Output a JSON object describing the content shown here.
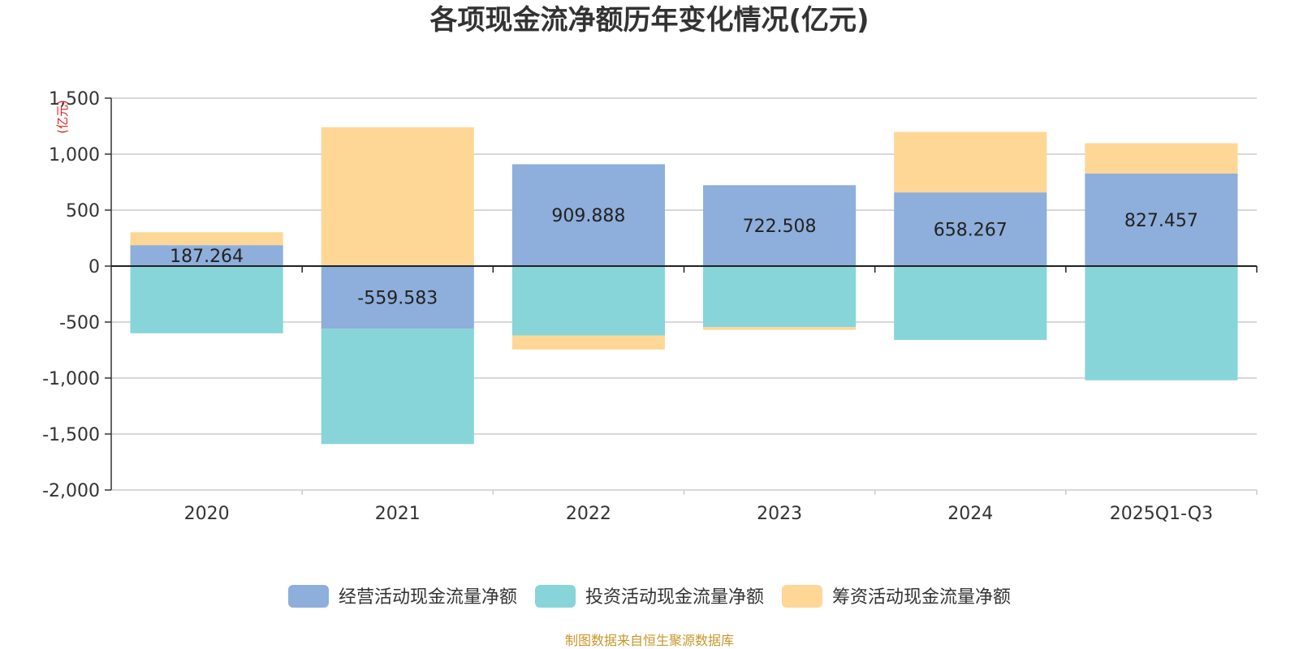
{
  "chart_data": {
    "type": "bar",
    "stacked": true,
    "title": "各项现金流净额历年变化情况(亿元)",
    "unit_label": "(亿元)",
    "categories": [
      "2020",
      "2021",
      "2022",
      "2023",
      "2024",
      "2025Q1-Q3"
    ],
    "ylim": [
      -2000,
      1500
    ],
    "y_ticks": [
      1500,
      1000,
      500,
      0,
      -500,
      -1000,
      -1500,
      -2000
    ],
    "y_tick_labels": [
      "1,500",
      "1,000",
      "500",
      "0",
      "-500",
      "-1,000",
      "-1,500",
      "-2,000"
    ],
    "grid": true,
    "legend_position": "bottom",
    "series": [
      {
        "name": "经营活动现金流量净额",
        "color": "#8eaedb",
        "values": [
          187.264,
          -559.583,
          909.888,
          722.508,
          658.267,
          827.457
        ],
        "labels": [
          "187.264",
          "-559.583",
          "909.888",
          "722.508",
          "658.267",
          "827.457"
        ]
      },
      {
        "name": "投资活动现金流量净额",
        "color": "#87d5d8",
        "values": [
          -600,
          -1030,
          -620,
          -545,
          -660,
          -1020
        ]
      },
      {
        "name": "筹资活动现金流量净额",
        "color": "#fed797",
        "values": [
          115,
          1240,
          -125,
          -25,
          540,
          270
        ]
      }
    ],
    "source": "制图数据来自恒生聚源数据库"
  }
}
